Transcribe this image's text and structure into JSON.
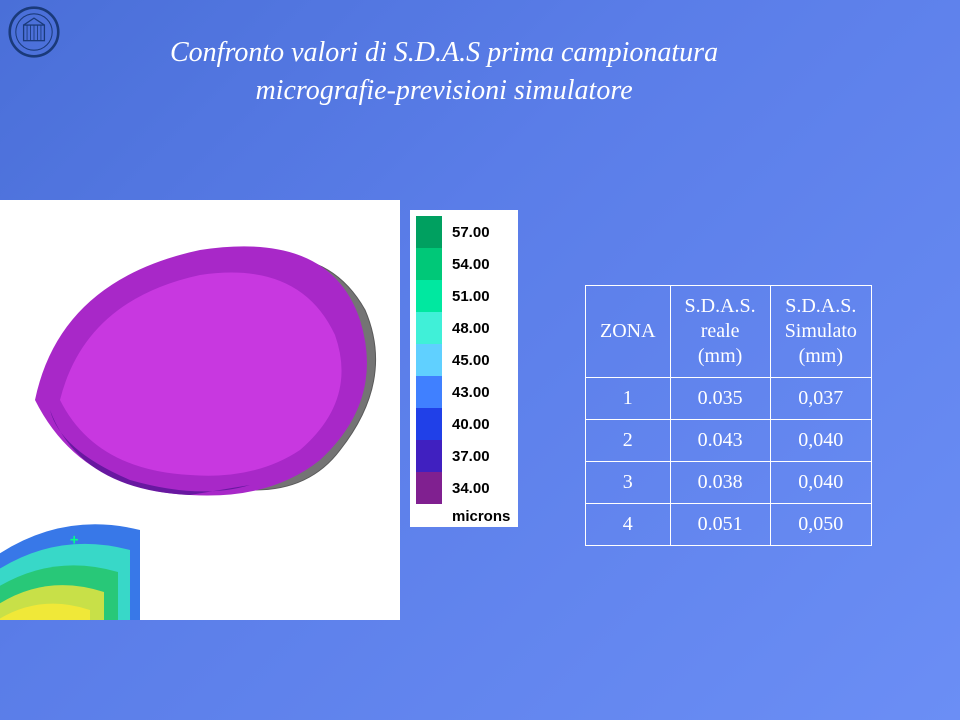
{
  "title": {
    "line1": "Confronto valori di S.D.A.S prima campionatura",
    "line2": "micrografie-previsioni simulatore",
    "color": "#ffffff",
    "font_size": 28
  },
  "background": {
    "gradient_start": "#4a6fd8",
    "gradient_end": "#6b8ef5"
  },
  "legend": {
    "unit_label": "microns",
    "font_size": 15,
    "entries": [
      {
        "value": "57.00",
        "color": "#00a060"
      },
      {
        "value": "54.00",
        "color": "#00c878"
      },
      {
        "value": "51.00",
        "color": "#00e8a0"
      },
      {
        "value": "48.00",
        "color": "#40f0d8"
      },
      {
        "value": "45.00",
        "color": "#60d0ff"
      },
      {
        "value": "43.00",
        "color": "#4080ff"
      },
      {
        "value": "40.00",
        "color": "#2040e8"
      },
      {
        "value": "37.00",
        "color": "#4020c0"
      },
      {
        "value": "34.00",
        "color": "#802090"
      }
    ]
  },
  "table": {
    "columns": [
      "ZONA",
      "S.D.A.S.\nreale\n(mm)",
      "S.D.A.S.\nSimulato\n(mm)"
    ],
    "rows": [
      [
        "1",
        "0.035",
        "0,037"
      ],
      [
        "2",
        "0.043",
        "0,040"
      ],
      [
        "3",
        "0.038",
        "0,040"
      ],
      [
        "4",
        "0.051",
        "0,050"
      ]
    ],
    "border_color": "#ffffff",
    "text_color": "#ffffff",
    "font_size": 20
  },
  "simulation": {
    "background_color": "#ffffff",
    "mesh_gray": "#6a6a6a",
    "lobe_outer": "#b030d0",
    "lobe_inner": "#d040e0",
    "lobe_dark": "#7020a0",
    "base_yellow": "#f0e040",
    "base_green": "#30d080",
    "base_cyan": "#40e0d0",
    "base_blue": "#4080f0"
  }
}
